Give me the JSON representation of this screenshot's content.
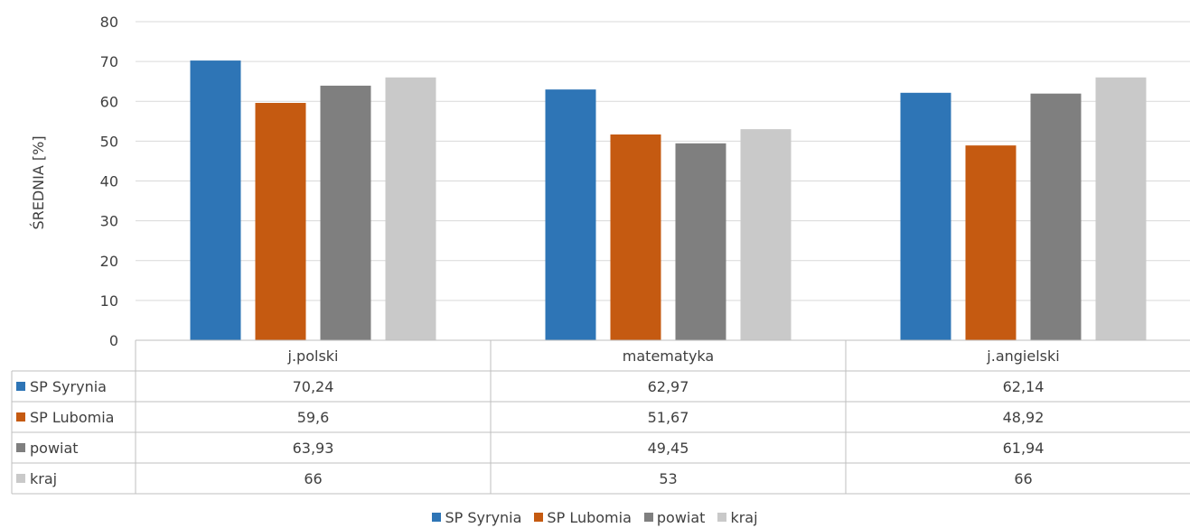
{
  "chart_data": {
    "type": "bar",
    "categories": [
      "j.polski",
      "matematyka",
      "j.angielski"
    ],
    "series": [
      {
        "name": "SP Syrynia",
        "color": "#2E75B6",
        "values": [
          70.24,
          62.97,
          62.14
        ],
        "labels": [
          "70,24",
          "62,97",
          "62,14"
        ]
      },
      {
        "name": "SP Lubomia",
        "color": "#C55A11",
        "values": [
          59.6,
          51.67,
          48.92
        ],
        "labels": [
          "59,6",
          "51,67",
          "48,92"
        ]
      },
      {
        "name": "powiat",
        "color": "#7F7F7F",
        "values": [
          63.93,
          49.45,
          61.94
        ],
        "labels": [
          "63,93",
          "49,45",
          "61,94"
        ]
      },
      {
        "name": "kraj",
        "color": "#C9C9C9",
        "values": [
          66,
          53,
          66
        ],
        "labels": [
          "66",
          "53",
          "66"
        ]
      }
    ],
    "ylabel": "ŚREDNIA [%]",
    "ylim": [
      0,
      80
    ],
    "yticks": [
      0,
      10,
      20,
      30,
      40,
      50,
      60,
      70,
      80
    ],
    "grid": true,
    "legend_position": "bottom",
    "data_table": true
  }
}
